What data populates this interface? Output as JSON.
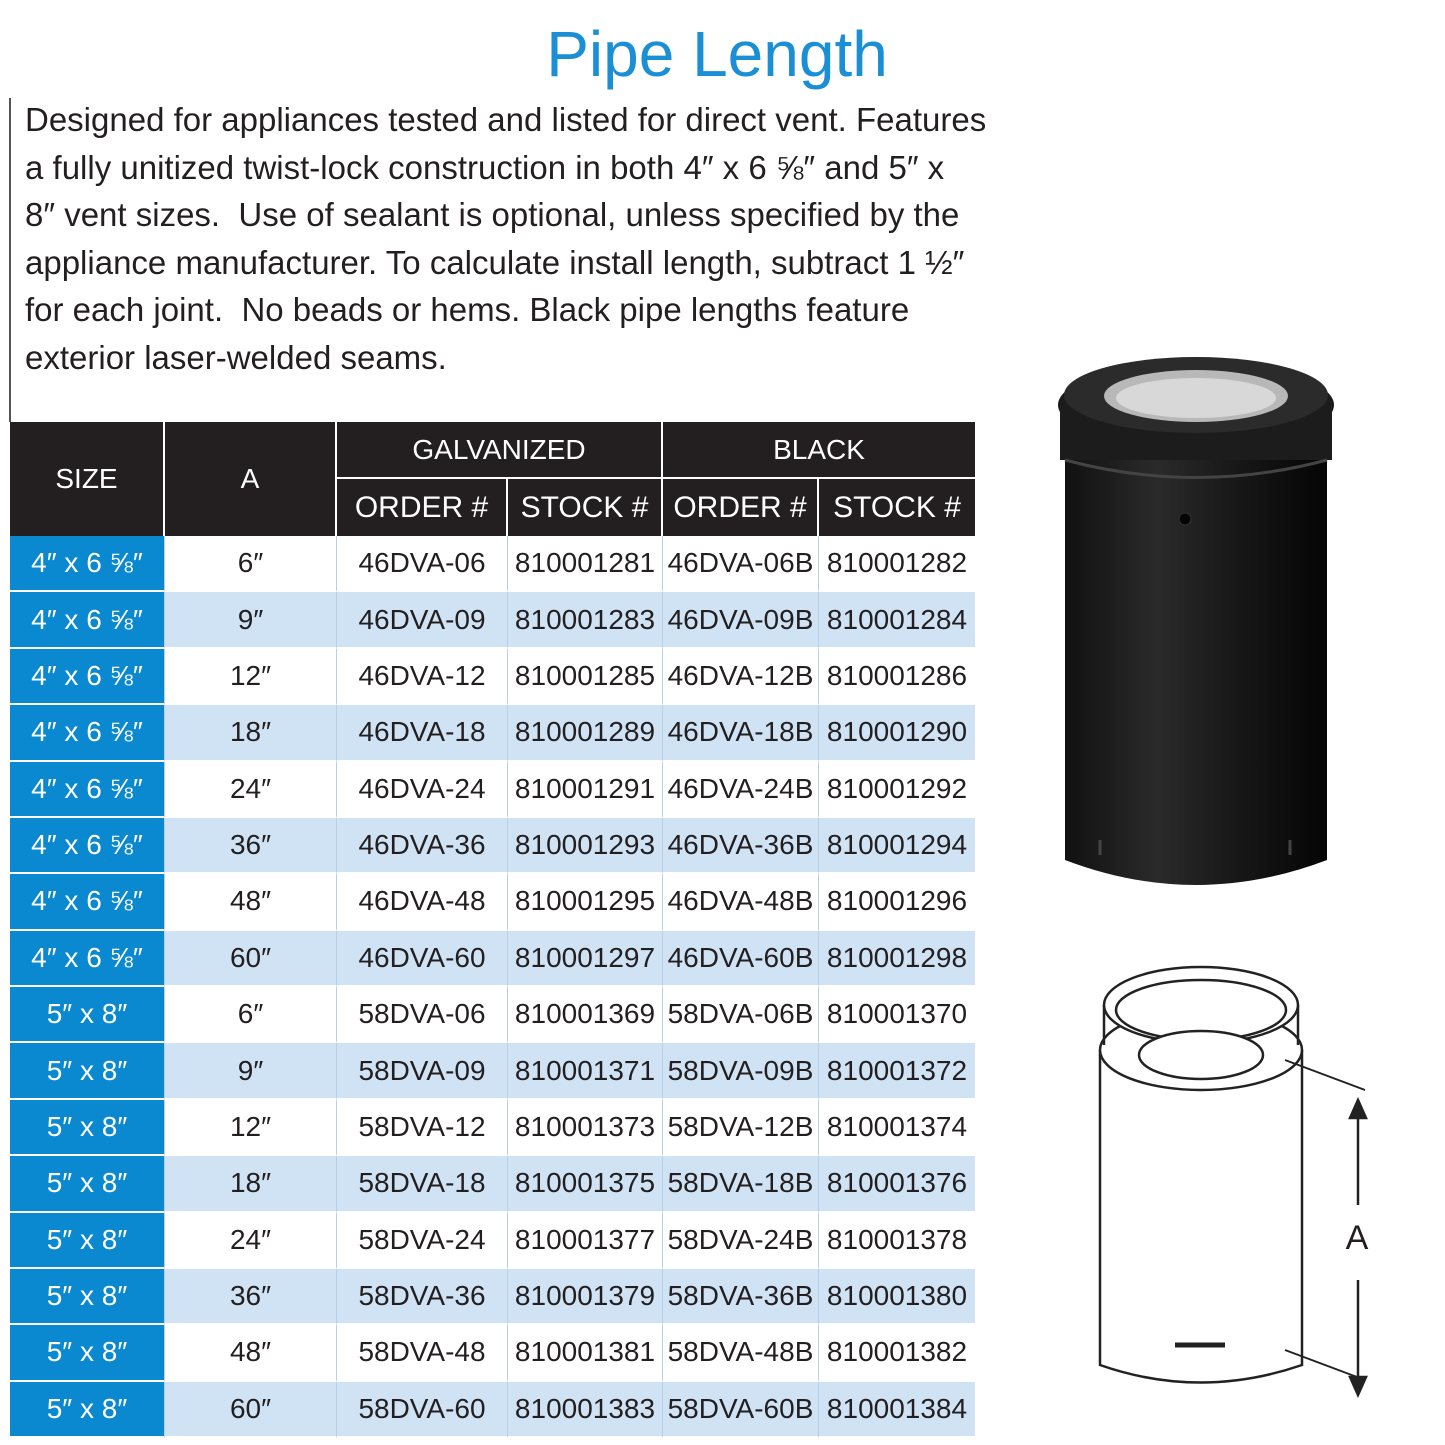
{
  "title": "Pipe Length",
  "description": [
    "Designed for appliances tested and listed for direct vent. Features",
    "a fully unitized twist-lock construction in both 4″ x 6 ⅝″ and 5″ x",
    "8″ vent sizes.  Use of sealant is optional, unless specified by the",
    "appliance manufacturer. To calculate install length, subtract 1 ½″",
    "for each joint.  No beads or hems. Black pipe lengths feature",
    "exterior laser-welded seams."
  ],
  "table": {
    "header": {
      "size": "SIZE",
      "a": "A",
      "galvanized": "GALVANIZED",
      "black": "BLACK",
      "columns": [
        "ORDER #",
        "STOCK #",
        "ORDER #",
        "STOCK #"
      ]
    },
    "rows": [
      [
        "4″ x 6 ⅝″",
        "6″",
        "46DVA-06",
        "810001281",
        "46DVA-06B",
        "810001282"
      ],
      [
        "4″ x 6 ⅝″",
        "9″",
        "46DVA-09",
        "810001283",
        "46DVA-09B",
        "810001284"
      ],
      [
        "4″ x 6 ⅝″",
        "12″",
        "46DVA-12",
        "810001285",
        "46DVA-12B",
        "810001286"
      ],
      [
        "4″ x 6 ⅝″",
        "18″",
        "46DVA-18",
        "810001289",
        "46DVA-18B",
        "810001290"
      ],
      [
        "4″ x 6 ⅝″",
        "24″",
        "46DVA-24",
        "810001291",
        "46DVA-24B",
        "810001292"
      ],
      [
        "4″ x 6 ⅝″",
        "36″",
        "46DVA-36",
        "810001293",
        "46DVA-36B",
        "810001294"
      ],
      [
        "4″ x 6 ⅝″",
        "48″",
        "46DVA-48",
        "810001295",
        "46DVA-48B",
        "810001296"
      ],
      [
        "4″ x 6 ⅝″",
        "60″",
        "46DVA-60",
        "810001297",
        "46DVA-60B",
        "810001298"
      ],
      [
        "5″ x 8″",
        "6″",
        "58DVA-06",
        "810001369",
        "58DVA-06B",
        "810001370"
      ],
      [
        "5″ x 8″",
        "9″",
        "58DVA-09",
        "810001371",
        "58DVA-09B",
        "810001372"
      ],
      [
        "5″ x 8″",
        "12″",
        "58DVA-12",
        "810001373",
        "58DVA-12B",
        "810001374"
      ],
      [
        "5″ x 8″",
        "18″",
        "58DVA-18",
        "810001375",
        "58DVA-18B",
        "810001376"
      ],
      [
        "5″ x 8″",
        "24″",
        "58DVA-24",
        "810001377",
        "58DVA-24B",
        "810001378"
      ],
      [
        "5″ x 8″",
        "36″",
        "58DVA-36",
        "810001379",
        "58DVA-36B",
        "810001380"
      ],
      [
        "5″ x 8″",
        "48″",
        "58DVA-48",
        "810001381",
        "58DVA-48B",
        "810001382"
      ],
      [
        "5″ x 8″",
        "60″",
        "58DVA-60",
        "810001383",
        "58DVA-60B",
        "810001384"
      ]
    ]
  },
  "diagram": {
    "dimension_label": "A"
  }
}
